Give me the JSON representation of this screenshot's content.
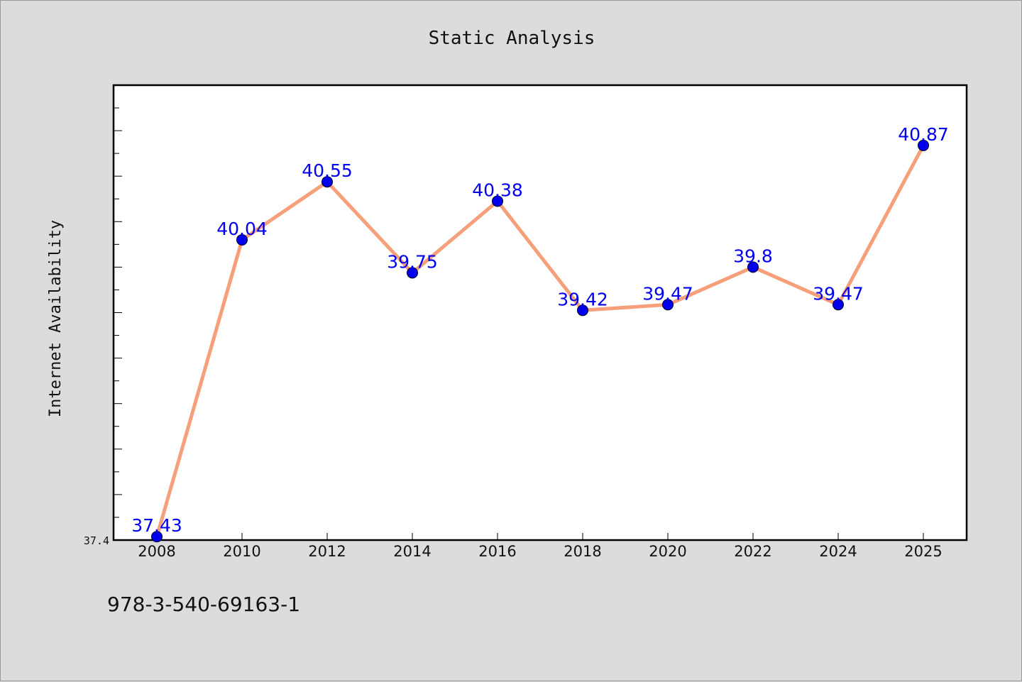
{
  "chart_data": {
    "type": "line",
    "title": "Static Analysis",
    "xlabel": "",
    "ylabel": "Internet Availability",
    "categories": [
      "2008",
      "2010",
      "2012",
      "2014",
      "2016",
      "2018",
      "2020",
      "2022",
      "2024",
      "2025"
    ],
    "series": [
      {
        "values": [
          37.43,
          40.04,
          40.55,
          39.75,
          40.38,
          39.42,
          39.47,
          39.8,
          39.47,
          40.87
        ],
        "data_labels": [
          "37.43",
          "40.04",
          "40.55",
          "39.75",
          "40.38",
          "39.42",
          "39.47",
          "39.8",
          "39.47",
          "40.87"
        ]
      }
    ],
    "y_tick_labels": [
      "37.4"
    ],
    "ylim": [
      37.4,
      41.4
    ],
    "grid": false,
    "legend": "none"
  },
  "footer_text": "978-3-540-69163-1",
  "colors": {
    "background": "#dcdcdc",
    "plot_background": "#ffffff",
    "line": "#f5a07a",
    "marker": "#0000ee",
    "data_label": "#0000ee"
  }
}
